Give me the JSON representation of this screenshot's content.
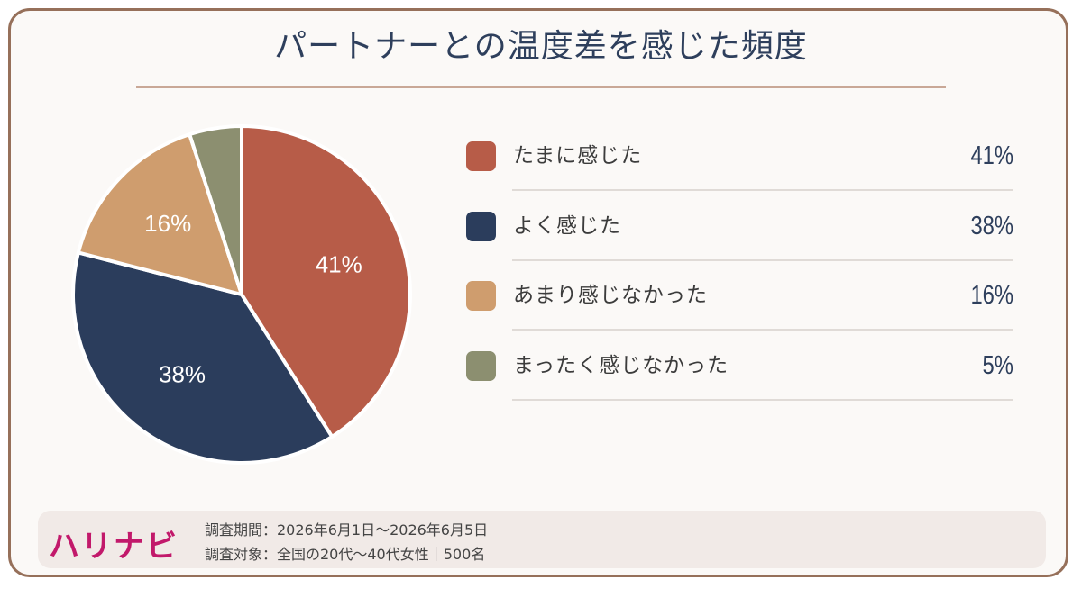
{
  "title": "パートナーとの温度差を感じた頻度",
  "chart_data": {
    "type": "pie",
    "categories": [
      "たまに感じた",
      "よく感じた",
      "あまり感じなかった",
      "まったく感じなかった"
    ],
    "values": [
      41,
      38,
      16,
      5
    ],
    "labels": [
      "41%",
      "38%",
      "16%",
      "5%"
    ],
    "colors": [
      "#b75c48",
      "#2b3d5c",
      "#cf9d6e",
      "#8c8f70"
    ],
    "slice_labels_shown": [
      "41%",
      "38%",
      "16%",
      ""
    ],
    "legend_placement": "right"
  },
  "legend": [
    {
      "label": "たまに感じた",
      "value": "41%",
      "color": "#b75c48"
    },
    {
      "label": "よく感じた",
      "value": "38%",
      "color": "#2b3d5c"
    },
    {
      "label": "あまり感じなかった",
      "value": "16%",
      "color": "#cf9d6e"
    },
    {
      "label": "まったく感じなかった",
      "value": "5%",
      "color": "#8c8f70"
    }
  ],
  "footer": {
    "logo": "ハリナビ",
    "period": "調査期間：2026年6月1日～2026年6月5日",
    "target": "調査対象：全国の20代～40代女性｜500名"
  }
}
